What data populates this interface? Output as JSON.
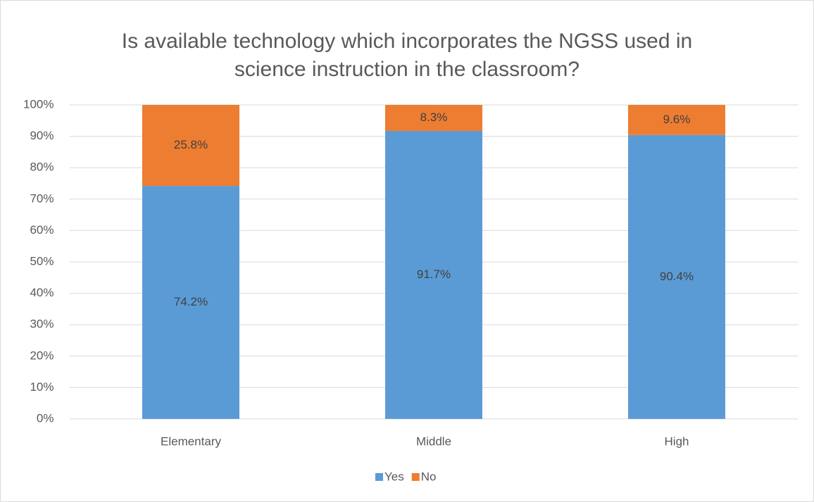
{
  "chart_data": {
    "type": "stacked_bar",
    "title": [
      "Is available technology which incorporates the NGSS used in",
      "science instruction in the classroom?"
    ],
    "categories": [
      "Elementary",
      "Middle",
      "High"
    ],
    "series": [
      {
        "name": "Yes",
        "color": "#5b9bd5",
        "values": [
          74.2,
          91.7,
          90.4
        ],
        "value_labels": [
          "74.2%",
          "91.7%",
          "90.4%"
        ]
      },
      {
        "name": "No",
        "color": "#ed7d31",
        "values": [
          25.8,
          8.3,
          9.6
        ],
        "value_labels": [
          "25.8%",
          "8.3%",
          "9.6%"
        ]
      }
    ],
    "ylim": [
      0,
      100
    ],
    "yticks": [
      {
        "value": 0,
        "label": "0%"
      },
      {
        "value": 10,
        "label": "10%"
      },
      {
        "value": 20,
        "label": "20%"
      },
      {
        "value": 30,
        "label": "30%"
      },
      {
        "value": 40,
        "label": "40%"
      },
      {
        "value": 50,
        "label": "50%"
      },
      {
        "value": 60,
        "label": "60%"
      },
      {
        "value": 70,
        "label": "70%"
      },
      {
        "value": 80,
        "label": "80%"
      },
      {
        "value": 90,
        "label": "90%"
      },
      {
        "value": 100,
        "label": "100%"
      }
    ],
    "grid": true,
    "legend": "bottom"
  }
}
